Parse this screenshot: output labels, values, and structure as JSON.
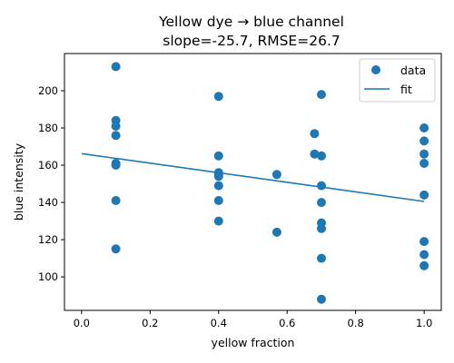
{
  "chart_data": {
    "type": "scatter",
    "title": "Yellow dye → blue channel",
    "subtitle": "slope=-25.7, RMSE=26.7",
    "xlabel": "yellow fraction",
    "ylabel": "blue intensity",
    "xlim": [
      -0.05,
      1.05
    ],
    "ylim": [
      82,
      220
    ],
    "xticks": [
      0.0,
      0.2,
      0.4,
      0.6,
      0.8,
      1.0
    ],
    "xtick_labels": [
      "0.0",
      "0.2",
      "0.4",
      "0.6",
      "0.8",
      "1.0"
    ],
    "yticks": [
      100,
      120,
      140,
      160,
      180,
      200
    ],
    "ytick_labels": [
      "100",
      "120",
      "140",
      "160",
      "180",
      "200"
    ],
    "grid": false,
    "legend_position": "top-right",
    "color": "#1f77b4",
    "series": [
      {
        "name": "data",
        "kind": "scatter",
        "points": [
          [
            0.1,
            213
          ],
          [
            0.1,
            184
          ],
          [
            0.1,
            181
          ],
          [
            0.1,
            176
          ],
          [
            0.1,
            161
          ],
          [
            0.1,
            160
          ],
          [
            0.1,
            141
          ],
          [
            0.1,
            115
          ],
          [
            0.4,
            197
          ],
          [
            0.4,
            165
          ],
          [
            0.4,
            156
          ],
          [
            0.4,
            155
          ],
          [
            0.4,
            154
          ],
          [
            0.4,
            149
          ],
          [
            0.4,
            141
          ],
          [
            0.4,
            130
          ],
          [
            0.57,
            155
          ],
          [
            0.57,
            124
          ],
          [
            0.68,
            177
          ],
          [
            0.68,
            166
          ],
          [
            0.7,
            198
          ],
          [
            0.7,
            165
          ],
          [
            0.7,
            149
          ],
          [
            0.7,
            140
          ],
          [
            0.7,
            129
          ],
          [
            0.7,
            126
          ],
          [
            0.7,
            110
          ],
          [
            0.7,
            88
          ],
          [
            1.0,
            180
          ],
          [
            1.0,
            173
          ],
          [
            1.0,
            166
          ],
          [
            1.0,
            161
          ],
          [
            1.0,
            144
          ],
          [
            1.0,
            119
          ],
          [
            1.0,
            112
          ],
          [
            1.0,
            106
          ]
        ]
      },
      {
        "name": "fit",
        "kind": "line",
        "points": [
          [
            0.0,
            166.2
          ],
          [
            1.0,
            140.5
          ]
        ]
      }
    ]
  }
}
